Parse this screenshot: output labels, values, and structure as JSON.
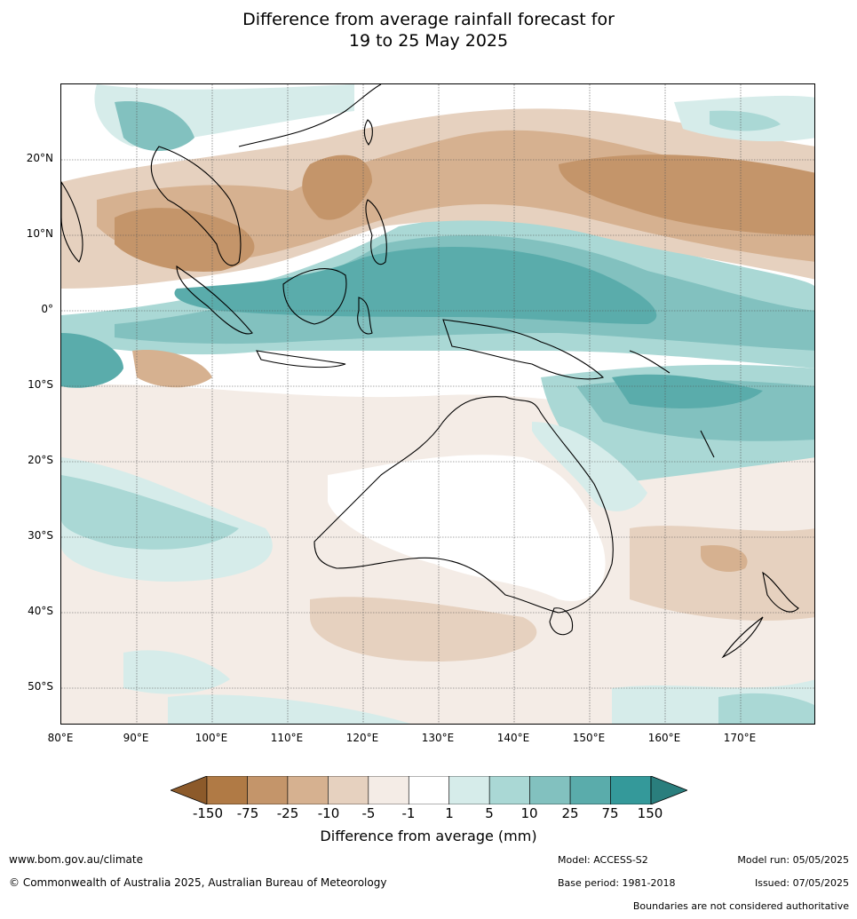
{
  "title": {
    "line1": "Difference from average rainfall forecast for",
    "line2": "19 to 25 May 2025"
  },
  "map": {
    "lat_labels": [
      "20°N",
      "10°N",
      "0°",
      "10°S",
      "20°S",
      "30°S",
      "40°S",
      "50°S"
    ],
    "lon_labels": [
      "80°E",
      "90°E",
      "100°E",
      "110°E",
      "120°E",
      "130°E",
      "140°E",
      "150°E",
      "160°E",
      "170°E"
    ],
    "extent": {
      "lon": [
        80,
        180
      ],
      "lat": [
        -55,
        30
      ]
    },
    "layer": "rainfall difference from average (mm)"
  },
  "colorbar": {
    "title": "Difference from average (mm)",
    "ticks": [
      "-150",
      "-75",
      "-25",
      "-10",
      "-5",
      "-1",
      "1",
      "5",
      "10",
      "25",
      "75",
      "150"
    ],
    "colors": [
      "#8c5a2a",
      "#b07a45",
      "#c4956a",
      "#d6b190",
      "#e6d1bf",
      "#f4ece6",
      "#ffffff",
      "#d6ecea",
      "#aad8d5",
      "#82c1bf",
      "#5aacab",
      "#34999a",
      "#2a7e7d"
    ]
  },
  "footer": {
    "website": "www.bom.gov.au/climate",
    "copyright": "© Commonwealth of Australia 2025, Australian Bureau of Meteorology",
    "model": "Model: ACCESS-S2",
    "base_period": "Base period: 1981-2018",
    "model_run": "Model run: 05/05/2025",
    "issued": "Issued: 07/05/2025",
    "disclaimer": "Boundaries are not considered authoritative"
  }
}
